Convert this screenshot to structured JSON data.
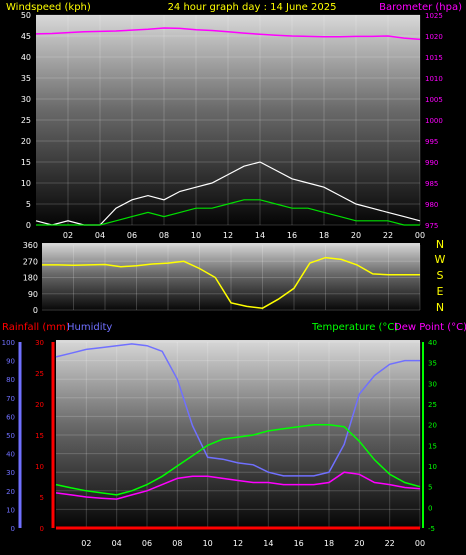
{
  "header": {
    "left_title": "Windspeed (kph)",
    "center_title": "24 hour graph day : 14 June 2025",
    "right_title": "Barometer (hpa)"
  },
  "wind_panel": {
    "left_ticks": [
      "50",
      "45",
      "40",
      "35",
      "30",
      "25",
      "20",
      "15",
      "10",
      "5",
      "0"
    ],
    "right_ticks": [
      "1025",
      "1020",
      "1015",
      "1010",
      "1005",
      "1000",
      "995",
      "990",
      "985",
      "980",
      "975"
    ],
    "x_ticks": [
      "02",
      "04",
      "06",
      "08",
      "10",
      "12",
      "14",
      "16",
      "18",
      "20",
      "22",
      "00"
    ]
  },
  "direction_panel": {
    "left_ticks": [
      "360",
      "270",
      "180",
      "90",
      "0"
    ],
    "compass": [
      "N",
      "W",
      "S",
      "E",
      "N"
    ],
    "x_ticks": [
      "02",
      "04",
      "06",
      "08",
      "10",
      "12",
      "14",
      "16",
      "18",
      "20",
      "22",
      "00"
    ]
  },
  "temp_panel": {
    "rain_label": "Rainfall (mm)",
    "humidity_label": "Humidity",
    "temp_label": "Temperature (°C)",
    "dew_label": "Dew Point (°C)",
    "humidity_ticks": [
      "100",
      "90",
      "80",
      "70",
      "60",
      "50",
      "40",
      "30",
      "20",
      "10",
      "0"
    ],
    "rain_ticks": [
      "30",
      "25",
      "20",
      "15",
      "10",
      "5",
      "0"
    ],
    "temp_ticks": [
      "40",
      "35",
      "30",
      "25",
      "20",
      "15",
      "10",
      "5",
      "0",
      "-5"
    ],
    "x_ticks": [
      "02",
      "04",
      "06",
      "08",
      "10",
      "12",
      "14",
      "16",
      "18",
      "20",
      "22",
      "00"
    ]
  },
  "colors": {
    "barometer": "#ff00ff",
    "gust": "#ffffff",
    "wind": "#00e000",
    "direction": "#ffff00",
    "humidity": "#7070ff",
    "rain": "#ff0000",
    "temperature": "#00ff00",
    "dew_point": "#ff00ff",
    "rain_rate": "#ffff00",
    "title": "#ffff00"
  },
  "chart_data": [
    {
      "type": "line",
      "x": [
        0,
        1,
        2,
        3,
        4,
        5,
        6,
        7,
        8,
        9,
        10,
        11,
        12,
        13,
        14,
        15,
        16,
        17,
        18,
        19,
        20,
        21,
        22,
        23,
        24
      ],
      "xlim": [
        0,
        24
      ],
      "ylabel": "Windspeed (kph)",
      "ylim": [
        0,
        50
      ],
      "y2label": "Barometer (hpa)",
      "y2lim": [
        975,
        1025
      ],
      "series": [
        {
          "name": "Barometer (hpa)",
          "axis": "right",
          "values": [
            1020.5,
            1020.6,
            1020.8,
            1021.0,
            1021.1,
            1021.2,
            1021.4,
            1021.6,
            1021.9,
            1021.8,
            1021.5,
            1021.3,
            1021.0,
            1020.7,
            1020.4,
            1020.2,
            1020.0,
            1019.9,
            1019.8,
            1019.8,
            1019.9,
            1019.9,
            1020.0,
            1019.5,
            1019.2
          ]
        },
        {
          "name": "Gust",
          "axis": "left",
          "values": [
            1,
            0,
            1,
            0,
            0,
            4,
            6,
            7,
            6,
            8,
            9,
            10,
            12,
            14,
            15,
            13,
            11,
            10,
            9,
            7,
            5,
            4,
            3,
            2,
            1
          ]
        },
        {
          "name": "Windspeed",
          "axis": "left",
          "values": [
            0,
            0,
            0,
            0,
            0,
            1,
            2,
            3,
            2,
            3,
            4,
            4,
            5,
            6,
            6,
            5,
            4,
            4,
            3,
            2,
            1,
            1,
            1,
            0,
            0
          ]
        }
      ]
    },
    {
      "type": "line",
      "x": [
        0,
        1,
        2,
        3,
        4,
        5,
        6,
        7,
        8,
        9,
        10,
        11,
        12,
        13,
        14,
        15,
        16,
        17,
        18,
        19,
        20,
        21,
        22,
        23,
        24
      ],
      "xlim": [
        0,
        24
      ],
      "ylim": [
        0,
        360
      ],
      "series": [
        {
          "name": "Wind direction",
          "values": [
            250,
            250,
            248,
            250,
            252,
            240,
            245,
            255,
            260,
            270,
            230,
            180,
            40,
            20,
            10,
            60,
            120,
            260,
            290,
            280,
            250,
            200,
            195,
            195,
            195
          ]
        }
      ]
    },
    {
      "type": "line",
      "x": [
        0,
        1,
        2,
        3,
        4,
        5,
        6,
        7,
        8,
        9,
        10,
        11,
        12,
        13,
        14,
        15,
        16,
        17,
        18,
        19,
        20,
        21,
        22,
        23,
        24
      ],
      "xlim": [
        0,
        24
      ],
      "ylabel": "Humidity",
      "ylim": [
        0,
        100
      ],
      "y2label": "Temperature (°C)",
      "y2lim": [
        -5,
        40
      ],
      "series": [
        {
          "name": "Humidity",
          "axis": "left",
          "values": [
            92,
            94,
            96,
            97,
            98,
            99,
            98,
            95,
            80,
            55,
            38,
            37,
            35,
            34,
            30,
            28,
            28,
            28,
            30,
            45,
            72,
            82,
            88,
            90,
            90
          ]
        },
        {
          "name": "Temperature (°C)",
          "axis": "right",
          "values": [
            5.5,
            4.7,
            4.0,
            3.5,
            3.0,
            4.0,
            5.5,
            7.5,
            10.0,
            12.5,
            15.0,
            16.5,
            17.0,
            17.5,
            18.5,
            19.0,
            19.5,
            20.0,
            20.0,
            19.5,
            16.0,
            11.5,
            8.0,
            6.0,
            5.0
          ]
        },
        {
          "name": "Dew Point (°C)",
          "axis": "right",
          "values": [
            3.5,
            3.0,
            2.5,
            2.2,
            2.0,
            3.0,
            4.0,
            5.5,
            7.0,
            7.5,
            7.5,
            7.0,
            6.5,
            6.0,
            6.0,
            5.5,
            5.5,
            5.5,
            6.0,
            8.5,
            8.0,
            6.0,
            5.5,
            4.8,
            4.5
          ]
        },
        {
          "name": "Rainfall (mm)",
          "axis": "left",
          "values": [
            0,
            0,
            0,
            0,
            0,
            0,
            0,
            0,
            0,
            0,
            0,
            0,
            0,
            0,
            0,
            0,
            0,
            0,
            0,
            0,
            0,
            0,
            0,
            0,
            0
          ]
        }
      ]
    }
  ]
}
